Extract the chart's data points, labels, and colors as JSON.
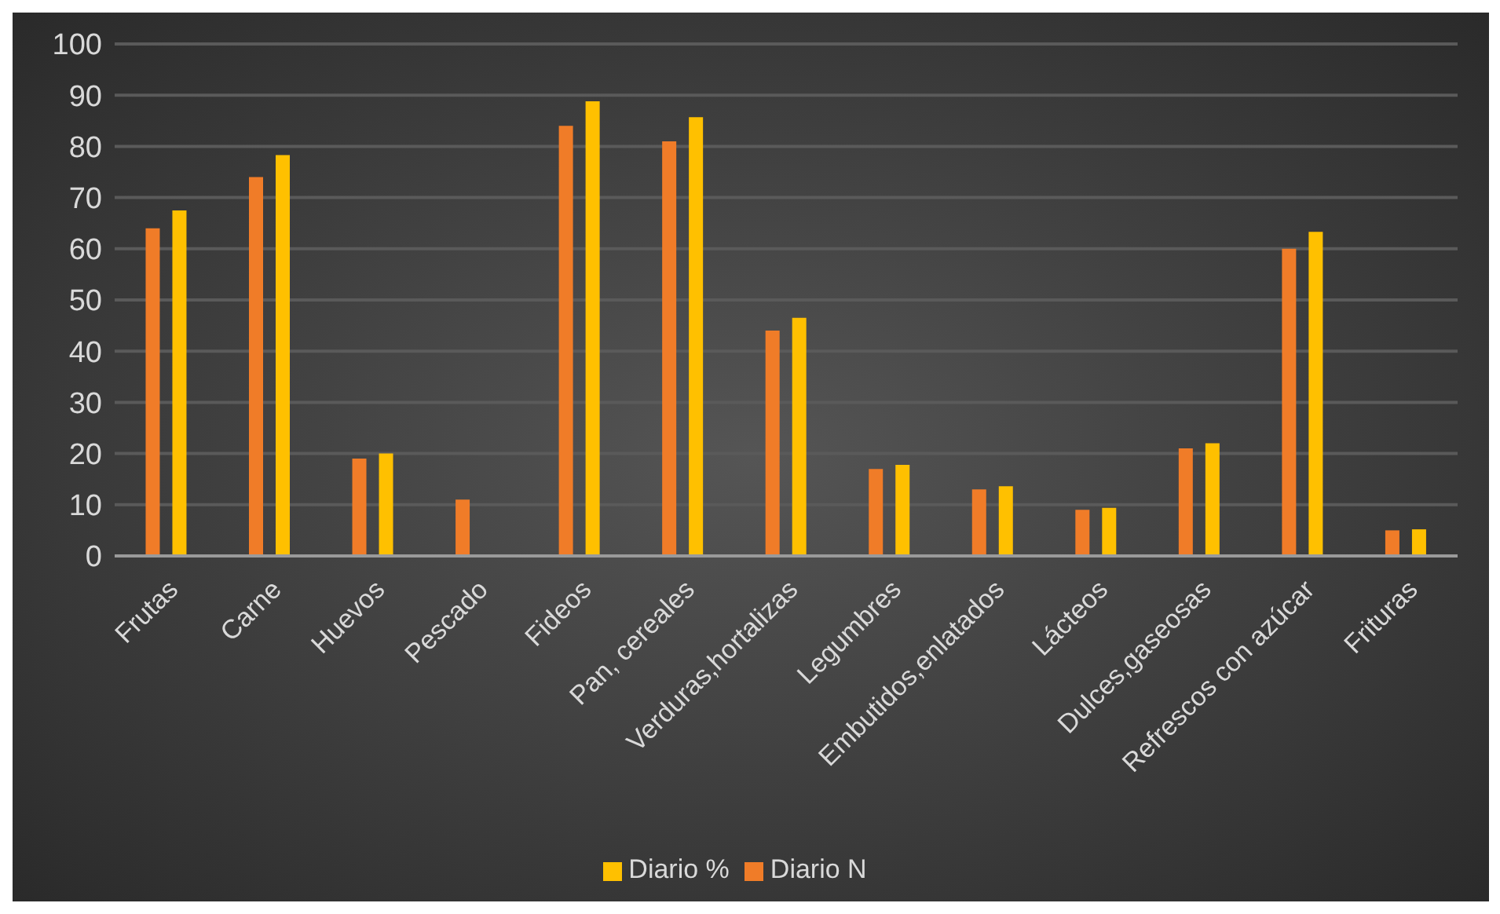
{
  "chart_data": {
    "type": "bar",
    "categories": [
      "Frutas",
      "Carne",
      "Huevos",
      "Pescado",
      "Fideos",
      "Pan, cereales",
      "Verduras,hortalizas",
      "Legumbres",
      "Embutidos,enlatados",
      "Lácteos",
      "Dulces,gaseosas",
      "Refrescos con azúcar",
      "Frituras"
    ],
    "series": [
      {
        "name": "Diario N",
        "color": "#f07c28",
        "values": [
          64,
          74,
          19,
          11,
          84,
          81,
          44,
          17,
          13,
          9,
          21,
          60,
          5
        ]
      },
      {
        "name": "Diario %",
        "color": "#ffc000",
        "values": [
          67.5,
          78.3,
          20,
          null,
          88.8,
          85.7,
          46.5,
          17.8,
          13.6,
          9.4,
          22,
          63.3,
          5.2
        ]
      }
    ],
    "ylim": [
      0,
      100
    ],
    "yticks": [
      0,
      10,
      20,
      30,
      40,
      50,
      60,
      70,
      80,
      90,
      100
    ],
    "grid": "y",
    "legend": "bottom"
  }
}
